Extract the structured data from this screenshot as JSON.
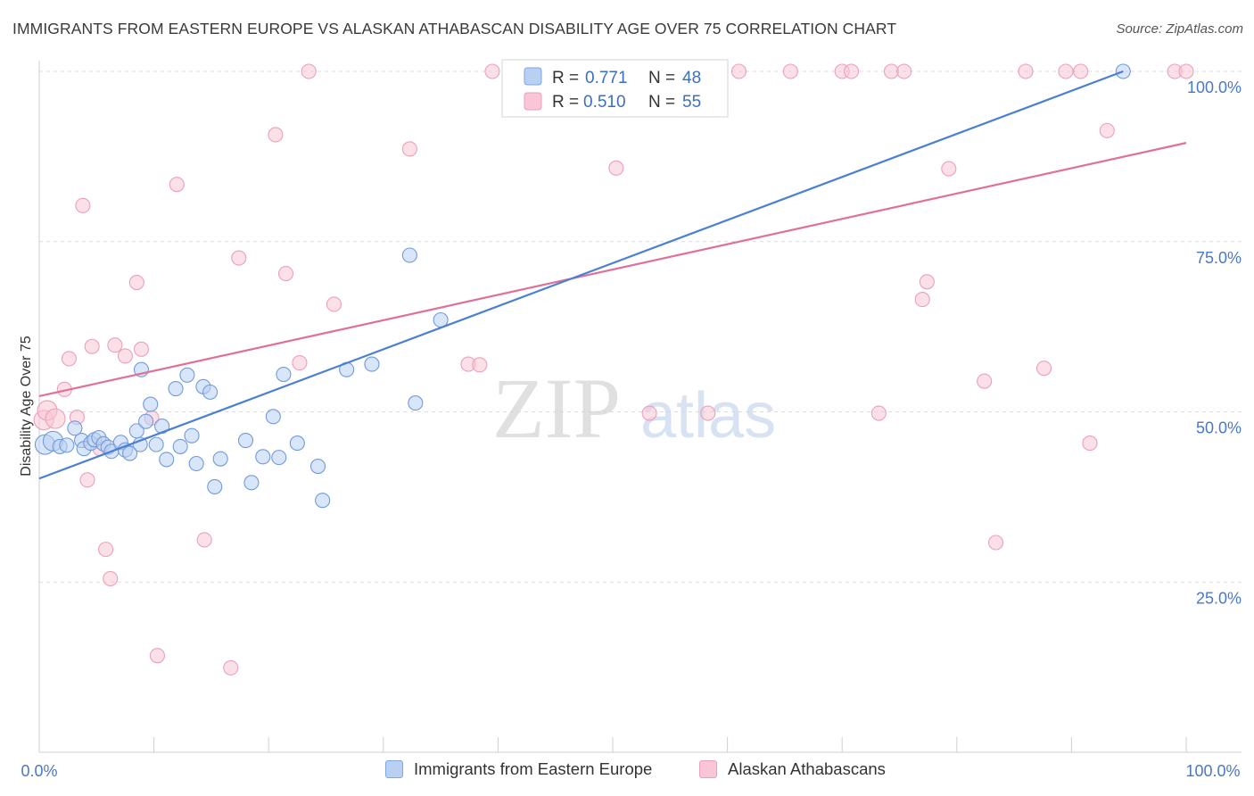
{
  "header": {
    "title": "IMMIGRANTS FROM EASTERN EUROPE VS ALASKAN ATHABASCAN DISABILITY AGE OVER 75 CORRELATION CHART",
    "source": "Source: ZipAtlas.com"
  },
  "watermark": {
    "zip": "ZIP",
    "atlas": "atlas"
  },
  "legend": {
    "items": [
      {
        "r_label": "R =",
        "r_value": "0.771",
        "n_label": "N =",
        "n_value": "48"
      },
      {
        "r_label": "R =",
        "r_value": "0.510",
        "n_label": "N =",
        "n_value": "55"
      }
    ]
  },
  "bottom_legend": {
    "series1": "Immigrants from Eastern Europe",
    "series2": "Alaskan Athabascans"
  },
  "chart_data": {
    "type": "scatter",
    "title": "IMMIGRANTS FROM EASTERN EUROPE VS ALASKAN ATHABASCAN DISABILITY AGE OVER 75 CORRELATION CHART",
    "xlabel": "",
    "ylabel": "Disability Age Over 75",
    "xlim": [
      0,
      100
    ],
    "ylim": [
      0,
      103
    ],
    "x_tick_labels": [
      "0.0%",
      "100.0%"
    ],
    "y_ticks": [
      25,
      50,
      75,
      100
    ],
    "y_tick_labels": [
      "25.0%",
      "50.0%",
      "75.0%",
      "100.0%"
    ],
    "grid": true,
    "legend_placement": "top-center",
    "colors": {
      "series1": "#4a7fd4",
      "series1_fill": "#b9d0f2",
      "series2": "#e07098",
      "series2_fill": "#f8c6d6"
    },
    "series": [
      {
        "name": "Immigrants from Eastern Europe",
        "r": 0.771,
        "n": 48,
        "trend": [
          [
            0,
            40.2
          ],
          [
            94.5,
            100
          ]
        ],
        "points": [
          [
            0.5,
            45.2
          ],
          [
            1.2,
            45.7
          ],
          [
            1.8,
            44.9
          ],
          [
            2.4,
            45.1
          ],
          [
            3.1,
            47.6
          ],
          [
            3.7,
            45.8
          ],
          [
            3.9,
            44.6
          ],
          [
            4.5,
            45.4
          ],
          [
            4.8,
            45.9
          ],
          [
            5.2,
            46.2
          ],
          [
            5.6,
            45.3
          ],
          [
            6.0,
            44.8
          ],
          [
            6.3,
            44.2
          ],
          [
            7.1,
            45.5
          ],
          [
            7.5,
            44.4
          ],
          [
            7.9,
            43.9
          ],
          [
            8.5,
            47.2
          ],
          [
            8.8,
            45.2
          ],
          [
            8.9,
            56.2
          ],
          [
            9.3,
            48.6
          ],
          [
            9.7,
            51.1
          ],
          [
            10.2,
            45.2
          ],
          [
            10.7,
            47.9
          ],
          [
            11.1,
            43.0
          ],
          [
            11.9,
            53.4
          ],
          [
            12.3,
            44.9
          ],
          [
            12.9,
            55.4
          ],
          [
            13.3,
            46.5
          ],
          [
            13.7,
            42.4
          ],
          [
            14.3,
            53.7
          ],
          [
            14.9,
            52.9
          ],
          [
            15.3,
            39.0
          ],
          [
            15.8,
            43.1
          ],
          [
            18.0,
            45.8
          ],
          [
            18.5,
            39.6
          ],
          [
            19.5,
            43.4
          ],
          [
            20.4,
            49.3
          ],
          [
            20.9,
            43.3
          ],
          [
            21.3,
            55.5
          ],
          [
            22.5,
            45.4
          ],
          [
            24.3,
            42.0
          ],
          [
            24.7,
            37.0
          ],
          [
            26.8,
            56.2
          ],
          [
            29.0,
            57.0
          ],
          [
            32.3,
            73.0
          ],
          [
            32.8,
            51.3
          ],
          [
            35.0,
            63.5
          ],
          [
            94.5,
            100
          ]
        ]
      },
      {
        "name": "Alaskan Athabascans",
        "r": 0.51,
        "n": 55,
        "trend": [
          [
            0,
            52.3
          ],
          [
            100,
            89.5
          ]
        ],
        "points": [
          [
            0.4,
            48.8
          ],
          [
            0.7,
            50.2
          ],
          [
            1.4,
            49.0
          ],
          [
            2.2,
            53.3
          ],
          [
            2.6,
            57.8
          ],
          [
            3.3,
            49.2
          ],
          [
            3.8,
            80.3
          ],
          [
            4.2,
            40.0
          ],
          [
            4.6,
            59.6
          ],
          [
            5.3,
            44.6
          ],
          [
            5.8,
            29.8
          ],
          [
            6.2,
            25.5
          ],
          [
            6.6,
            59.8
          ],
          [
            7.5,
            58.2
          ],
          [
            8.5,
            69.0
          ],
          [
            8.9,
            59.2
          ],
          [
            9.8,
            49.1
          ],
          [
            10.3,
            14.2
          ],
          [
            12.0,
            83.4
          ],
          [
            14.4,
            31.2
          ],
          [
            16.7,
            12.4
          ],
          [
            17.4,
            72.6
          ],
          [
            20.6,
            90.7
          ],
          [
            21.5,
            70.3
          ],
          [
            22.7,
            57.2
          ],
          [
            23.5,
            100
          ],
          [
            25.7,
            65.8
          ],
          [
            32.3,
            88.6
          ],
          [
            37.4,
            57.0
          ],
          [
            38.4,
            56.9
          ],
          [
            39.5,
            100
          ],
          [
            47.9,
            100
          ],
          [
            50.3,
            85.8
          ],
          [
            53.2,
            49.8
          ],
          [
            58.3,
            49.8
          ],
          [
            61.0,
            100
          ],
          [
            65.5,
            100
          ],
          [
            70.0,
            100
          ],
          [
            70.8,
            100
          ],
          [
            73.2,
            49.8
          ],
          [
            74.3,
            100
          ],
          [
            75.4,
            100
          ],
          [
            77.0,
            66.5
          ],
          [
            77.4,
            69.1
          ],
          [
            79.3,
            85.7
          ],
          [
            82.4,
            54.5
          ],
          [
            83.4,
            30.8
          ],
          [
            86.0,
            100
          ],
          [
            87.6,
            56.4
          ],
          [
            89.5,
            100
          ],
          [
            90.8,
            100
          ],
          [
            91.6,
            45.4
          ],
          [
            93.1,
            91.3
          ],
          [
            99.0,
            100
          ],
          [
            100.0,
            100
          ]
        ]
      }
    ]
  }
}
